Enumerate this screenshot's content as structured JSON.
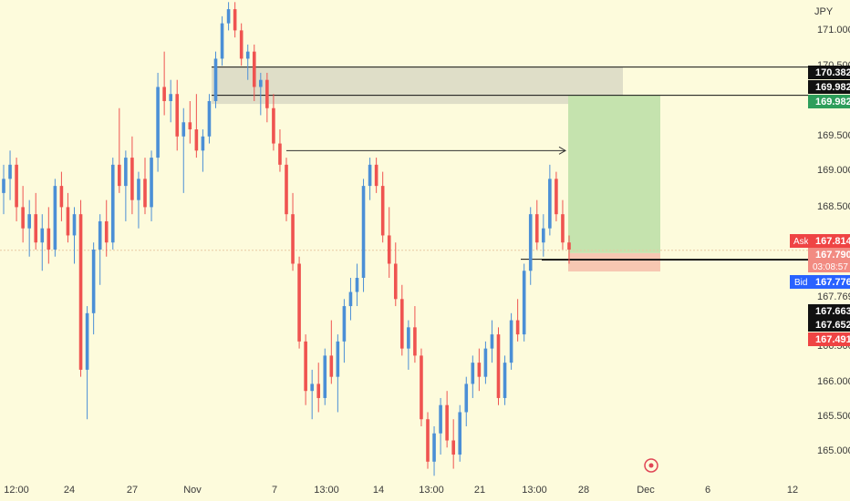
{
  "chart_data": {
    "type": "candlestick",
    "title": "",
    "currency_label": "JPY",
    "x_axis_labels": [
      "12:00",
      "24",
      "27",
      "Nov",
      "7",
      "13:00",
      "14",
      "13:00",
      "21",
      "13:00",
      "28",
      "Dec",
      "6",
      "12"
    ],
    "y_axis_ticks": [
      "171.000",
      "170.500",
      "169.500",
      "169.000",
      "168.500",
      "167.769",
      "166.500",
      "166.000",
      "165.500",
      "165.000"
    ],
    "ylim": [
      164.63,
      171.33
    ],
    "price_tags": {
      "top_black_1": "170.382",
      "top_black_2": "169.982",
      "green": "169.982",
      "ask_label": "Ask",
      "ask_value": "167.814",
      "last_price": "167.790",
      "countdown": "03:08:57",
      "bid_label": "Bid",
      "bid_value": "167.776",
      "black_low_1": "167.663",
      "black_low_2": "167.652",
      "red": "167.491"
    },
    "position": {
      "entry": 167.75,
      "target": 169.98,
      "stop": 167.49
    },
    "zone": {
      "top": 170.38,
      "bottom": 169.86
    },
    "trend_arrow_level": 169.2,
    "colors": {
      "background": "#fdfbdc",
      "up": "#4b8fd6",
      "down": "#ef5350",
      "profit_zone": "#c5e3ae",
      "loss_zone": "#f7c7b2",
      "supply_zone": "#d9d8c4",
      "green_tag": "#2e9e5b",
      "red_tag": "#ef4444",
      "blue_tag": "#2962ff",
      "black_tag": "#111111"
    },
    "candles": [
      {
        "o": 168.6,
        "h": 169.0,
        "l": 168.3,
        "c": 168.8
      },
      {
        "o": 168.8,
        "h": 169.2,
        "l": 168.5,
        "c": 169.0
      },
      {
        "o": 169.0,
        "h": 169.1,
        "l": 168.2,
        "c": 168.4
      },
      {
        "o": 168.4,
        "h": 168.7,
        "l": 167.9,
        "c": 168.1
      },
      {
        "o": 168.1,
        "h": 168.5,
        "l": 167.7,
        "c": 168.3
      },
      {
        "o": 168.3,
        "h": 168.6,
        "l": 167.8,
        "c": 167.9
      },
      {
        "o": 167.9,
        "h": 168.3,
        "l": 167.5,
        "c": 168.1
      },
      {
        "o": 168.1,
        "h": 168.4,
        "l": 167.6,
        "c": 167.8
      },
      {
        "o": 167.8,
        "h": 168.8,
        "l": 167.7,
        "c": 168.7
      },
      {
        "o": 168.7,
        "h": 168.9,
        "l": 168.2,
        "c": 168.4
      },
      {
        "o": 168.4,
        "h": 168.6,
        "l": 167.9,
        "c": 168.0
      },
      {
        "o": 168.0,
        "h": 168.4,
        "l": 167.6,
        "c": 168.3
      },
      {
        "o": 168.3,
        "h": 168.5,
        "l": 166.0,
        "c": 166.1
      },
      {
        "o": 166.1,
        "h": 167.0,
        "l": 165.4,
        "c": 166.9
      },
      {
        "o": 166.9,
        "h": 167.9,
        "l": 166.6,
        "c": 167.8
      },
      {
        "o": 167.8,
        "h": 168.3,
        "l": 167.3,
        "c": 168.2
      },
      {
        "o": 168.2,
        "h": 168.5,
        "l": 167.7,
        "c": 167.9
      },
      {
        "o": 167.9,
        "h": 169.1,
        "l": 167.8,
        "c": 169.0
      },
      {
        "o": 169.0,
        "h": 169.8,
        "l": 168.6,
        "c": 168.7
      },
      {
        "o": 168.7,
        "h": 169.2,
        "l": 168.2,
        "c": 169.1
      },
      {
        "o": 169.1,
        "h": 169.4,
        "l": 168.3,
        "c": 168.5
      },
      {
        "o": 168.5,
        "h": 168.9,
        "l": 168.1,
        "c": 168.8
      },
      {
        "o": 168.8,
        "h": 169.1,
        "l": 168.3,
        "c": 168.4
      },
      {
        "o": 168.4,
        "h": 169.2,
        "l": 168.2,
        "c": 169.1
      },
      {
        "o": 169.1,
        "h": 170.3,
        "l": 168.9,
        "c": 170.1
      },
      {
        "o": 170.1,
        "h": 170.6,
        "l": 169.7,
        "c": 169.9
      },
      {
        "o": 169.9,
        "h": 170.2,
        "l": 169.6,
        "c": 170.0
      },
      {
        "o": 170.0,
        "h": 170.2,
        "l": 169.2,
        "c": 169.4
      },
      {
        "o": 169.4,
        "h": 169.8,
        "l": 168.6,
        "c": 169.6
      },
      {
        "o": 169.6,
        "h": 169.9,
        "l": 169.3,
        "c": 169.5
      },
      {
        "o": 169.5,
        "h": 170.0,
        "l": 169.1,
        "c": 169.2
      },
      {
        "o": 169.2,
        "h": 169.5,
        "l": 168.9,
        "c": 169.4
      },
      {
        "o": 169.4,
        "h": 170.0,
        "l": 169.3,
        "c": 169.9
      },
      {
        "o": 169.9,
        "h": 170.6,
        "l": 169.8,
        "c": 170.5
      },
      {
        "o": 170.5,
        "h": 171.1,
        "l": 170.4,
        "c": 171.0
      },
      {
        "o": 171.0,
        "h": 171.3,
        "l": 170.9,
        "c": 171.2
      },
      {
        "o": 171.2,
        "h": 171.3,
        "l": 170.8,
        "c": 170.9
      },
      {
        "o": 170.9,
        "h": 171.0,
        "l": 170.4,
        "c": 170.5
      },
      {
        "o": 170.5,
        "h": 170.7,
        "l": 170.2,
        "c": 170.6
      },
      {
        "o": 170.6,
        "h": 170.7,
        "l": 169.9,
        "c": 170.1
      },
      {
        "o": 170.1,
        "h": 170.3,
        "l": 169.7,
        "c": 170.2
      },
      {
        "o": 170.2,
        "h": 170.3,
        "l": 169.6,
        "c": 169.8
      },
      {
        "o": 169.8,
        "h": 170.0,
        "l": 169.2,
        "c": 169.3
      },
      {
        "o": 169.3,
        "h": 169.5,
        "l": 168.9,
        "c": 169.0
      },
      {
        "o": 169.0,
        "h": 169.1,
        "l": 168.2,
        "c": 168.3
      },
      {
        "o": 168.3,
        "h": 168.6,
        "l": 167.5,
        "c": 167.6
      },
      {
        "o": 167.6,
        "h": 167.7,
        "l": 166.4,
        "c": 166.5
      },
      {
        "o": 166.5,
        "h": 166.6,
        "l": 165.6,
        "c": 165.8
      },
      {
        "o": 165.8,
        "h": 166.1,
        "l": 165.4,
        "c": 165.9
      },
      {
        "o": 165.9,
        "h": 166.2,
        "l": 165.5,
        "c": 165.7
      },
      {
        "o": 165.7,
        "h": 166.4,
        "l": 165.6,
        "c": 166.3
      },
      {
        "o": 166.3,
        "h": 166.8,
        "l": 165.9,
        "c": 166.0
      },
      {
        "o": 166.0,
        "h": 166.6,
        "l": 165.5,
        "c": 166.5
      },
      {
        "o": 166.5,
        "h": 167.1,
        "l": 166.2,
        "c": 167.0
      },
      {
        "o": 167.0,
        "h": 167.4,
        "l": 166.8,
        "c": 167.2
      },
      {
        "o": 167.2,
        "h": 167.6,
        "l": 167.0,
        "c": 167.4
      },
      {
        "o": 167.4,
        "h": 168.8,
        "l": 167.2,
        "c": 168.7
      },
      {
        "o": 168.7,
        "h": 169.1,
        "l": 168.5,
        "c": 169.0
      },
      {
        "o": 169.0,
        "h": 169.1,
        "l": 168.6,
        "c": 168.7
      },
      {
        "o": 168.7,
        "h": 168.9,
        "l": 167.9,
        "c": 168.0
      },
      {
        "o": 168.0,
        "h": 168.4,
        "l": 167.4,
        "c": 167.6
      },
      {
        "o": 167.6,
        "h": 167.9,
        "l": 167.0,
        "c": 167.1
      },
      {
        "o": 167.1,
        "h": 167.3,
        "l": 166.3,
        "c": 166.4
      },
      {
        "o": 166.4,
        "h": 166.8,
        "l": 166.1,
        "c": 166.7
      },
      {
        "o": 166.7,
        "h": 167.0,
        "l": 166.2,
        "c": 166.3
      },
      {
        "o": 166.3,
        "h": 166.4,
        "l": 165.3,
        "c": 165.4
      },
      {
        "o": 165.4,
        "h": 165.5,
        "l": 164.7,
        "c": 164.8
      },
      {
        "o": 164.8,
        "h": 165.3,
        "l": 164.6,
        "c": 165.2
      },
      {
        "o": 165.2,
        "h": 165.7,
        "l": 164.9,
        "c": 165.6
      },
      {
        "o": 165.6,
        "h": 165.8,
        "l": 165.0,
        "c": 165.1
      },
      {
        "o": 165.1,
        "h": 165.4,
        "l": 164.7,
        "c": 164.9
      },
      {
        "o": 164.9,
        "h": 165.6,
        "l": 164.8,
        "c": 165.5
      },
      {
        "o": 165.5,
        "h": 166.0,
        "l": 165.3,
        "c": 165.9
      },
      {
        "o": 165.9,
        "h": 166.3,
        "l": 165.7,
        "c": 166.2
      },
      {
        "o": 166.2,
        "h": 166.4,
        "l": 165.8,
        "c": 166.0
      },
      {
        "o": 166.0,
        "h": 166.5,
        "l": 165.9,
        "c": 166.4
      },
      {
        "o": 166.4,
        "h": 166.8,
        "l": 166.2,
        "c": 166.6
      },
      {
        "o": 166.6,
        "h": 166.7,
        "l": 165.6,
        "c": 165.7
      },
      {
        "o": 165.7,
        "h": 166.3,
        "l": 165.6,
        "c": 166.2
      },
      {
        "o": 166.2,
        "h": 166.9,
        "l": 166.1,
        "c": 166.8
      },
      {
        "o": 166.8,
        "h": 167.1,
        "l": 166.5,
        "c": 166.6
      },
      {
        "o": 166.6,
        "h": 167.6,
        "l": 166.5,
        "c": 167.5
      },
      {
        "o": 167.5,
        "h": 168.4,
        "l": 167.3,
        "c": 168.3
      },
      {
        "o": 168.3,
        "h": 168.5,
        "l": 167.8,
        "c": 167.9
      },
      {
        "o": 167.9,
        "h": 168.3,
        "l": 167.7,
        "c": 168.1
      },
      {
        "o": 168.1,
        "h": 169.0,
        "l": 168.0,
        "c": 168.8
      },
      {
        "o": 168.8,
        "h": 168.9,
        "l": 168.2,
        "c": 168.3
      },
      {
        "o": 168.3,
        "h": 168.5,
        "l": 167.8,
        "c": 167.9
      },
      {
        "o": 167.9,
        "h": 168.0,
        "l": 167.6,
        "c": 167.8
      }
    ]
  }
}
